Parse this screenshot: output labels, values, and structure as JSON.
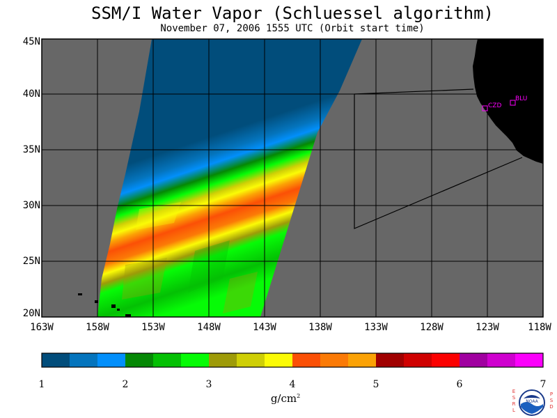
{
  "title": "SSM/I Water Vapor (Schluessel algorithm)",
  "subtitle": "November 07, 2006  1555 UTC  (Orbit start time)",
  "latitude_labels": [
    "45N",
    "40N",
    "35N",
    "30N",
    "25N",
    "20N"
  ],
  "longitude_labels": [
    "163W",
    "158W",
    "153W",
    "148W",
    "143W",
    "138W",
    "133W",
    "128W",
    "123W",
    "118W"
  ],
  "stations": [
    {
      "name": "CZD",
      "lat": 38.6,
      "lon": -123.2
    },
    {
      "name": "BLU",
      "lat": 39.3,
      "lon": -121.0
    }
  ],
  "colorbar": {
    "tick_labels": [
      "1",
      "2",
      "3",
      "4",
      "5",
      "6",
      "7"
    ],
    "unit_text": "g/cm",
    "unit_superscript": "2",
    "colors": [
      "#014d7b",
      "#0474bd",
      "#028ffb",
      "#058805",
      "#04c004",
      "#06fb06",
      "#9e9b08",
      "#cfcf06",
      "#fbfb06",
      "#fb5006",
      "#fb7a06",
      "#fba205",
      "#a00000",
      "#cf0000",
      "#fb0000",
      "#a000a0",
      "#cf00cf",
      "#fb00fb"
    ]
  },
  "colors": {
    "land": "#000000",
    "no_data": "#676767",
    "grid": "#000000",
    "station": "#ff00ff"
  },
  "logo": {
    "left_text": "ESRL",
    "right_text": "PSD",
    "center_text": "NOAA"
  }
}
